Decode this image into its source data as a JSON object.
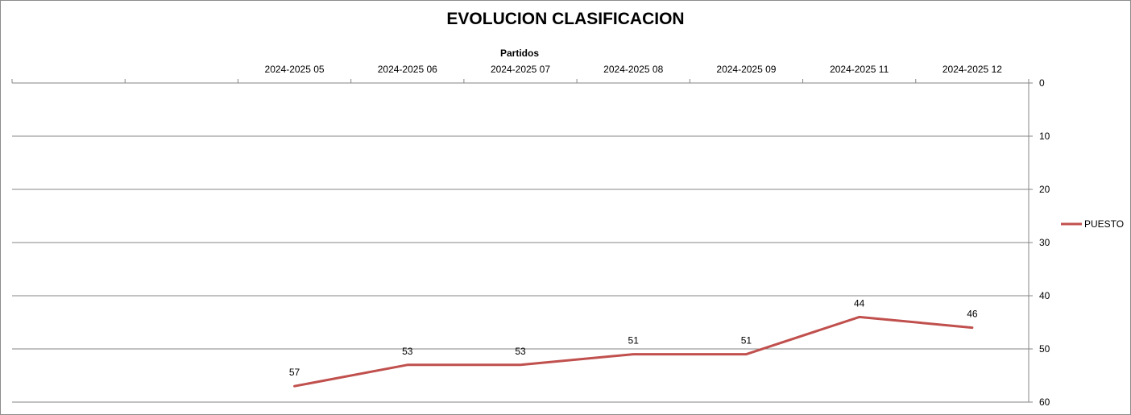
{
  "chart_data": {
    "type": "line",
    "title": "EVOLUCION CLASIFICACION",
    "xlabel": "Partidos",
    "ylabel": "",
    "categories": [
      "",
      "",
      "2024-2025 05",
      "2024-2025 06",
      "2024-2025 07",
      "2024-2025 08",
      "2024-2025 09",
      "2024-2025 11",
      "2024-2025 12"
    ],
    "series": [
      {
        "name": "PUESTO",
        "color": "#c0504d",
        "values": [
          null,
          null,
          57,
          53,
          53,
          51,
          51,
          44,
          46
        ]
      }
    ],
    "ylim": [
      0,
      60
    ],
    "y_reversed": true,
    "y_ticks": [
      0,
      10,
      20,
      30,
      40,
      50,
      60
    ],
    "y_axis_side": "right",
    "x_axis_side": "top",
    "grid": true,
    "legend_position": "right"
  }
}
